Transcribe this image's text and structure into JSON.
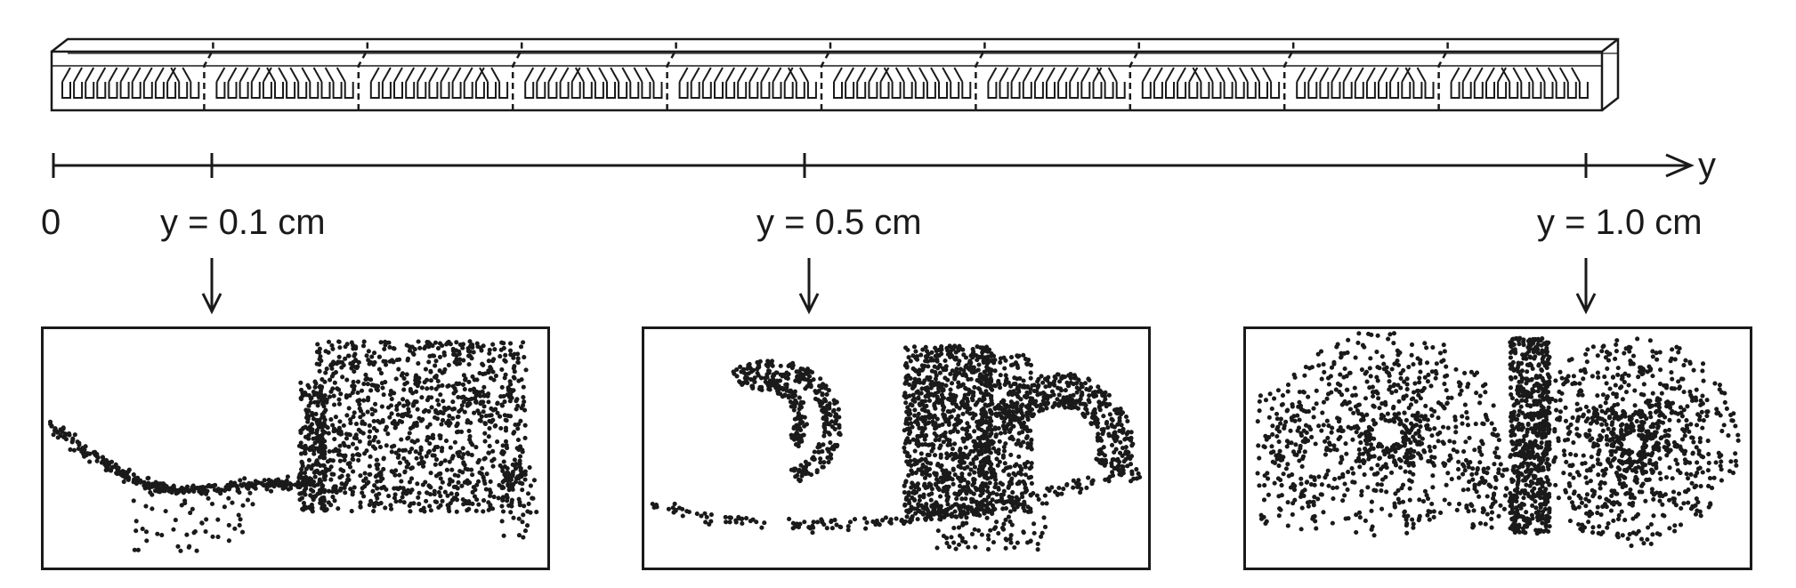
{
  "axis": {
    "variable": "y",
    "origin_label": "0"
  },
  "sections": [
    {
      "label": "y = 0.1 cm",
      "position_cm": 0.1
    },
    {
      "label": "y = 0.5 cm",
      "position_cm": 0.5
    },
    {
      "label": "y = 1.0 cm",
      "position_cm": 1.0
    }
  ],
  "channel": {
    "cycles": 10
  },
  "colors": {
    "ink": "#1a1a1a",
    "background": "#ffffff"
  }
}
